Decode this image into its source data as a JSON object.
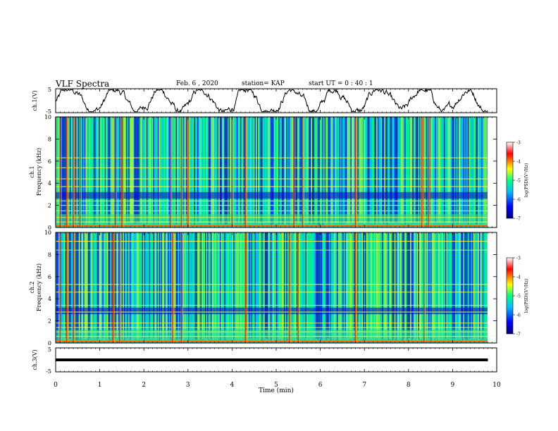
{
  "header": {
    "title": "VLF Spectra",
    "date": "Feb. 6 , 2020",
    "station": "station= KAP",
    "start_time": "start UT = 0 : 40 : 1"
  },
  "chart_data": [
    {
      "type": "line",
      "panel": "ch1-waveform",
      "ylabel": "ch.1(V)",
      "ylim": [
        -5,
        5
      ],
      "yticks": [
        "5",
        "-5"
      ],
      "x_range_min": [
        0,
        9.8
      ],
      "series": [
        {
          "values_description_free": true
        }
      ],
      "color": "#000000"
    },
    {
      "type": "heatmap",
      "panel": "ch1-spectrogram",
      "ylabel": "ch.1\nFrequency (kHz)",
      "ylim": [
        0,
        10
      ],
      "yticks": [
        "0",
        "2",
        "4",
        "6",
        "8",
        "10"
      ],
      "colorbar": {
        "label": "log(PSD)(V²/Hz)",
        "range": [
          -7,
          -3
        ],
        "ticks": [
          "-3",
          "-4",
          "-5",
          "-6",
          "-7"
        ]
      },
      "vertical_bursts_min": [
        0.1,
        0.25,
        0.4,
        0.55,
        1.35,
        1.5,
        2.6,
        2.85,
        3.0,
        4.0,
        4.3,
        5.4,
        5.6,
        6.8,
        8.3,
        8.45
      ],
      "horizontal_lines_kHz": [
        0.5,
        0.9,
        1.5,
        2.0,
        2.4,
        3.7,
        4.4,
        5.4,
        6.3
      ]
    },
    {
      "type": "heatmap",
      "panel": "ch2-spectrogram",
      "ylabel": "ch.2\nFrequency (kHz)",
      "ylim": [
        0,
        10
      ],
      "yticks": [
        "0",
        "2",
        "4",
        "6",
        "8",
        "10"
      ],
      "colorbar": {
        "label": "log(PSD)(V²/Hz)",
        "range": [
          -7,
          -3
        ],
        "ticks": [
          "-3",
          "-4",
          "-5",
          "-6",
          "-7"
        ]
      },
      "vertical_bursts_min": [
        0.1,
        0.25,
        0.4,
        1.3,
        1.45,
        2.65,
        2.85,
        4.3,
        5.3,
        5.5,
        6.8,
        8.35
      ],
      "horizontal_lines_kHz": [
        0.6,
        1.0,
        1.4,
        1.8,
        2.8,
        3.4,
        4.6,
        5.3,
        8.4,
        9.2
      ]
    },
    {
      "type": "line",
      "panel": "ch3-waveform",
      "ylabel": "ch.3(V)",
      "ylim": [
        -5,
        5
      ],
      "yticks": [
        "5",
        "-5"
      ],
      "series": [
        {
          "constant_value": 0
        }
      ],
      "color": "#000000"
    }
  ],
  "xaxis": {
    "label": "Time (min)",
    "range": [
      0,
      10
    ],
    "ticks": [
      "0",
      "1",
      "2",
      "3",
      "4",
      "5",
      "6",
      "7",
      "8",
      "9",
      "10"
    ]
  },
  "colors": {
    "spectrogram_palette": [
      "#000080",
      "#0000ff",
      "#00bfff",
      "#00ff80",
      "#ffff00",
      "#ff0000",
      "#ffffff"
    ]
  }
}
